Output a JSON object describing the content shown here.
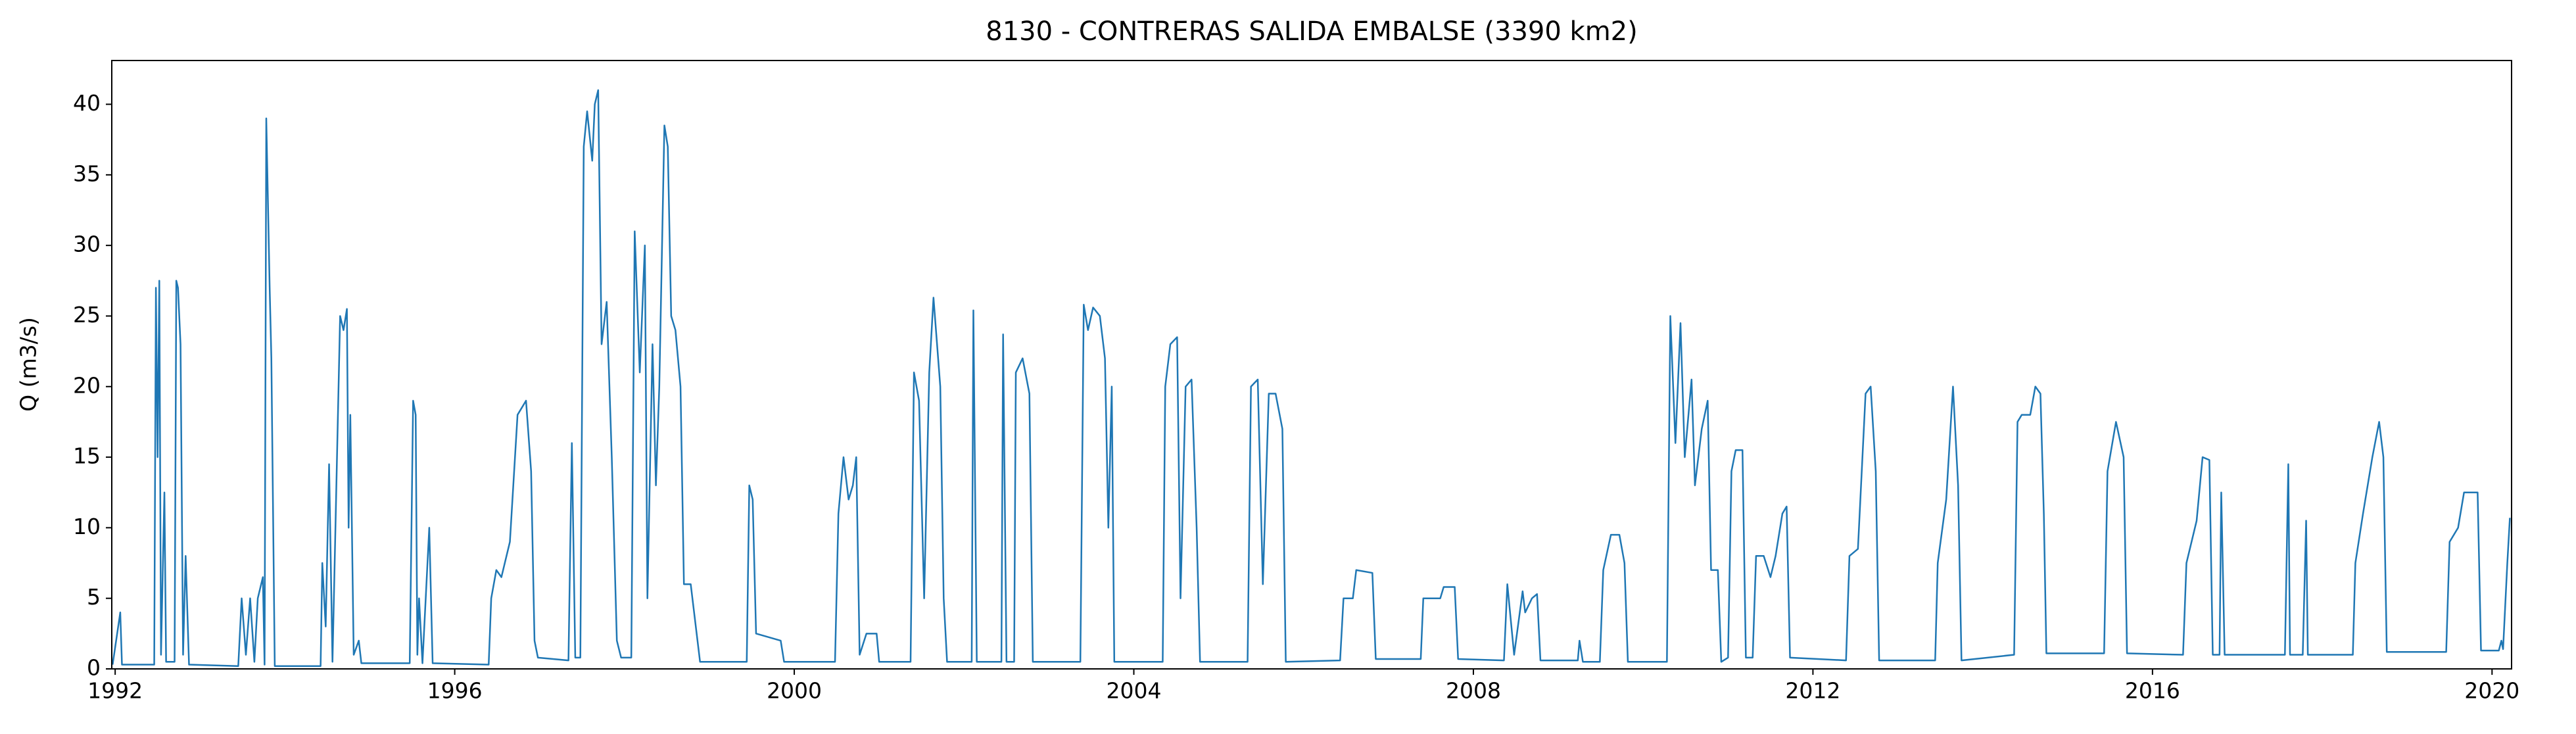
{
  "chart_data": {
    "type": "line",
    "title": "8130 - CONTRERAS SALIDA EMBALSE (3390 km2)",
    "y_label": "Q (m3/s)",
    "color": "#1f77b4",
    "xlim": [
      1991.96,
      2020.23
    ],
    "xticks": [
      1992,
      1996,
      2000,
      2004,
      2008,
      2012,
      2016,
      2020
    ],
    "ylim": [
      0,
      43.1
    ],
    "yticks": [
      0,
      5,
      10,
      15,
      20,
      25,
      30,
      35,
      40
    ],
    "x": [
      1991.97,
      1992.06,
      1992.08,
      1992.46,
      1992.48,
      1992.5,
      1992.52,
      1992.54,
      1992.58,
      1992.6,
      1992.7,
      1992.72,
      1992.74,
      1992.77,
      1992.8,
      1992.83,
      1992.87,
      1993.45,
      1993.49,
      1993.54,
      1993.59,
      1993.64,
      1993.68,
      1993.74,
      1993.76,
      1993.78,
      1993.82,
      1993.84,
      1993.88,
      1994.42,
      1994.44,
      1994.48,
      1994.52,
      1994.56,
      1994.65,
      1994.69,
      1994.73,
      1994.75,
      1994.77,
      1994.81,
      1994.87,
      1994.9,
      1995.47,
      1995.51,
      1995.54,
      1995.56,
      1995.58,
      1995.62,
      1995.7,
      1995.74,
      1996.4,
      1996.43,
      1996.49,
      1996.55,
      1996.65,
      1996.74,
      1996.84,
      1996.9,
      1996.94,
      1996.98,
      1997.34,
      1997.38,
      1997.42,
      1997.48,
      1997.52,
      1997.56,
      1997.62,
      1997.65,
      1997.69,
      1997.73,
      1997.79,
      1997.85,
      1997.91,
      1997.96,
      1998.08,
      1998.12,
      1998.18,
      1998.24,
      1998.27,
      1998.33,
      1998.37,
      1998.41,
      1998.47,
      1998.51,
      1998.55,
      1998.6,
      1998.66,
      1998.7,
      1998.78,
      1998.86,
      1998.89,
      1999.44,
      1999.47,
      1999.51,
      1999.55,
      1999.84,
      1999.88,
      2000.48,
      2000.52,
      2000.58,
      2000.64,
      2000.69,
      2000.73,
      2000.77,
      2000.85,
      2000.97,
      2001.0,
      2001.37,
      2001.41,
      2001.47,
      2001.53,
      2001.59,
      2001.64,
      2001.72,
      2001.76,
      2001.8,
      2002.09,
      2002.11,
      2002.15,
      2002.44,
      2002.46,
      2002.5,
      2002.59,
      2002.61,
      2002.69,
      2002.77,
      2002.81,
      2003.37,
      2003.41,
      2003.46,
      2003.52,
      2003.6,
      2003.66,
      2003.7,
      2003.74,
      2003.77,
      2004.34,
      2004.37,
      2004.43,
      2004.51,
      2004.55,
      2004.61,
      2004.68,
      2004.74,
      2004.78,
      2005.34,
      2005.38,
      2005.46,
      2005.52,
      2005.59,
      2005.67,
      2005.75,
      2005.79,
      2006.43,
      2006.47,
      2006.58,
      2006.62,
      2006.81,
      2006.85,
      2007.38,
      2007.41,
      2007.61,
      2007.65,
      2007.78,
      2007.82,
      2008.36,
      2008.4,
      2008.48,
      2008.58,
      2008.61,
      2008.69,
      2008.75,
      2008.79,
      2009.23,
      2009.25,
      2009.29,
      2009.49,
      2009.53,
      2009.62,
      2009.72,
      2009.78,
      2009.82,
      2010.28,
      2010.32,
      2010.38,
      2010.44,
      2010.49,
      2010.57,
      2010.61,
      2010.69,
      2010.76,
      2010.8,
      2010.88,
      2010.92,
      2011.0,
      2011.04,
      2011.09,
      2011.17,
      2011.21,
      2011.29,
      2011.33,
      2011.42,
      2011.5,
      2011.56,
      2011.64,
      2011.69,
      2011.73,
      2012.39,
      2012.43,
      2012.53,
      2012.62,
      2012.68,
      2012.74,
      2012.78,
      2013.44,
      2013.47,
      2013.57,
      2013.65,
      2013.71,
      2013.75,
      2014.37,
      2014.41,
      2014.46,
      2014.56,
      2014.62,
      2014.68,
      2014.72,
      2014.75,
      2015.43,
      2015.47,
      2015.57,
      2015.66,
      2015.7,
      2016.36,
      2016.4,
      2016.52,
      2016.59,
      2016.67,
      2016.71,
      2016.79,
      2016.81,
      2016.85,
      2017.56,
      2017.6,
      2017.62,
      2017.77,
      2017.81,
      2017.83,
      2018.36,
      2018.39,
      2018.48,
      2018.59,
      2018.67,
      2018.72,
      2018.76,
      2019.46,
      2019.5,
      2019.6,
      2019.67,
      2019.83,
      2019.87,
      2020.08,
      2020.11,
      2020.13,
      2020.18,
      2020.21
    ],
    "values": [
      0.3,
      4,
      0.3,
      0.3,
      27,
      15,
      27.5,
      1,
      12.5,
      0.5,
      0.5,
      27.5,
      27,
      23,
      1,
      8,
      0.3,
      0.2,
      5,
      1,
      5,
      0.5,
      5,
      6.5,
      0.3,
      39,
      27,
      22,
      0.2,
      0.2,
      7.5,
      3,
      14.5,
      0.5,
      25,
      24,
      25.5,
      10,
      18,
      1,
      2,
      0.4,
      0.4,
      19,
      18,
      1,
      5,
      0.4,
      10,
      0.4,
      0.3,
      5,
      7,
      6.5,
      9,
      18,
      19,
      14,
      2,
      0.8,
      0.6,
      16,
      0.8,
      0.8,
      37,
      39.5,
      36,
      40,
      41,
      23,
      26,
      15,
      2,
      0.8,
      0.8,
      31,
      21,
      30,
      5,
      23,
      13,
      20,
      38.5,
      37,
      25,
      24,
      20,
      6,
      6,
      2,
      0.5,
      0.5,
      13,
      12,
      2.5,
      2,
      0.5,
      0.5,
      11,
      15,
      12,
      13,
      15,
      1,
      2.5,
      2.5,
      0.5,
      0.5,
      21,
      19,
      5,
      21,
      26.3,
      20,
      5,
      0.5,
      0.5,
      25.4,
      0.5,
      0.5,
      23.7,
      0.5,
      0.5,
      21,
      22,
      19.5,
      0.5,
      0.5,
      25.8,
      24,
      25.6,
      25,
      22,
      10,
      20,
      0.5,
      0.5,
      20,
      23,
      23.5,
      5,
      20,
      20.5,
      10,
      0.5,
      0.5,
      20,
      20.5,
      6,
      19.5,
      19.5,
      17,
      0.5,
      0.6,
      5,
      5,
      7,
      6.8,
      0.7,
      0.7,
      5,
      5,
      5.8,
      5.8,
      0.7,
      0.6,
      6,
      1,
      5.5,
      4,
      5,
      5.3,
      0.6,
      0.6,
      2,
      0.5,
      0.5,
      7,
      9.5,
      9.5,
      7.5,
      0.5,
      0.5,
      25,
      16,
      24.5,
      15,
      20.5,
      13,
      17,
      19,
      7,
      7,
      0.5,
      0.8,
      14,
      15.5,
      15.5,
      0.8,
      0.8,
      8,
      8,
      6.5,
      8,
      11,
      11.5,
      0.8,
      0.6,
      8,
      8.5,
      19.5,
      20,
      14,
      0.6,
      0.6,
      7.5,
      12,
      20,
      13,
      0.6,
      1,
      17.5,
      18,
      18,
      20,
      19.5,
      11,
      1.1,
      1.1,
      14,
      17.5,
      15,
      1.1,
      1,
      7.5,
      10.5,
      15,
      14.8,
      1,
      1,
      12.5,
      1,
      1,
      14.5,
      1,
      1,
      10.5,
      1,
      1,
      7.5,
      11,
      15,
      17.5,
      15,
      1.2,
      1.2,
      9,
      10,
      12.5,
      12.5,
      1.3,
      1.3,
      2,
      1.4,
      7.5,
      10.7
    ]
  }
}
